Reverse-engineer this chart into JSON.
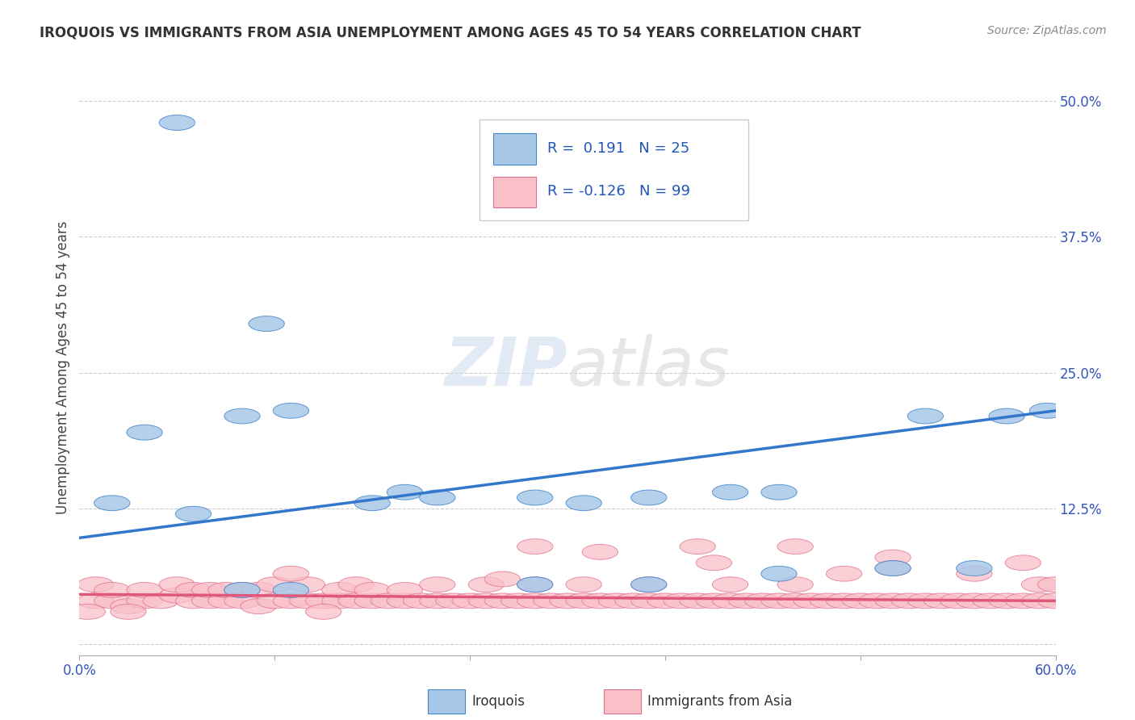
{
  "title": "IROQUOIS VS IMMIGRANTS FROM ASIA UNEMPLOYMENT AMONG AGES 45 TO 54 YEARS CORRELATION CHART",
  "source": "Source: ZipAtlas.com",
  "ylabel": "Unemployment Among Ages 45 to 54 years",
  "xlim": [
    0.0,
    0.6
  ],
  "ylim": [
    -0.02,
    0.52
  ],
  "ylim_data": [
    0.0,
    0.5
  ],
  "yticks": [
    0.0,
    0.125,
    0.25,
    0.375,
    0.5
  ],
  "watermark": "ZIPatlas",
  "legend_iroquois_R": "0.191",
  "legend_iroquois_N": "25",
  "legend_immigrants_R": "-0.126",
  "legend_immigrants_N": "99",
  "blue_fill": "#a8c8e8",
  "blue_edge": "#4488cc",
  "blue_line": "#3377cc",
  "pink_fill": "#f9c0c8",
  "pink_edge": "#e07090",
  "pink_line": "#e05878",
  "iroquois_x": [
    0.06,
    0.04,
    0.115,
    0.1,
    0.13,
    0.18,
    0.2,
    0.22,
    0.28,
    0.31,
    0.35,
    0.4,
    0.43,
    0.52,
    0.57,
    0.595,
    0.02,
    0.07,
    0.1,
    0.13,
    0.28,
    0.35,
    0.43,
    0.5,
    0.55
  ],
  "iroquois_y": [
    0.48,
    0.195,
    0.295,
    0.21,
    0.215,
    0.13,
    0.14,
    0.135,
    0.135,
    0.13,
    0.135,
    0.14,
    0.14,
    0.21,
    0.21,
    0.215,
    0.13,
    0.12,
    0.05,
    0.05,
    0.055,
    0.055,
    0.065,
    0.07,
    0.07
  ],
  "immigrants_x": [
    0.01,
    0.01,
    0.02,
    0.02,
    0.03,
    0.04,
    0.04,
    0.05,
    0.06,
    0.06,
    0.07,
    0.07,
    0.08,
    0.08,
    0.09,
    0.09,
    0.1,
    0.1,
    0.11,
    0.11,
    0.12,
    0.12,
    0.13,
    0.14,
    0.14,
    0.15,
    0.16,
    0.16,
    0.17,
    0.17,
    0.18,
    0.18,
    0.19,
    0.2,
    0.2,
    0.21,
    0.22,
    0.22,
    0.23,
    0.24,
    0.25,
    0.25,
    0.26,
    0.27,
    0.28,
    0.28,
    0.29,
    0.3,
    0.31,
    0.31,
    0.32,
    0.33,
    0.34,
    0.35,
    0.35,
    0.36,
    0.37,
    0.38,
    0.39,
    0.4,
    0.4,
    0.41,
    0.42,
    0.43,
    0.44,
    0.44,
    0.45,
    0.46,
    0.47,
    0.48,
    0.49,
    0.5,
    0.51,
    0.52,
    0.53,
    0.54,
    0.55,
    0.56,
    0.57,
    0.58,
    0.59,
    0.59,
    0.6,
    0.6,
    0.28,
    0.32,
    0.38,
    0.44,
    0.5,
    0.58,
    0.13,
    0.26,
    0.39,
    0.47,
    0.03,
    0.15,
    0.5,
    0.55,
    0.005
  ],
  "immigrants_y": [
    0.04,
    0.055,
    0.04,
    0.05,
    0.035,
    0.04,
    0.05,
    0.04,
    0.045,
    0.055,
    0.04,
    0.05,
    0.04,
    0.05,
    0.04,
    0.05,
    0.04,
    0.05,
    0.035,
    0.05,
    0.04,
    0.055,
    0.04,
    0.04,
    0.055,
    0.04,
    0.04,
    0.05,
    0.04,
    0.055,
    0.04,
    0.05,
    0.04,
    0.04,
    0.05,
    0.04,
    0.04,
    0.055,
    0.04,
    0.04,
    0.04,
    0.055,
    0.04,
    0.04,
    0.04,
    0.055,
    0.04,
    0.04,
    0.04,
    0.055,
    0.04,
    0.04,
    0.04,
    0.04,
    0.055,
    0.04,
    0.04,
    0.04,
    0.04,
    0.04,
    0.055,
    0.04,
    0.04,
    0.04,
    0.04,
    0.055,
    0.04,
    0.04,
    0.04,
    0.04,
    0.04,
    0.04,
    0.04,
    0.04,
    0.04,
    0.04,
    0.04,
    0.04,
    0.04,
    0.04,
    0.04,
    0.055,
    0.04,
    0.055,
    0.09,
    0.085,
    0.09,
    0.09,
    0.08,
    0.075,
    0.065,
    0.06,
    0.075,
    0.065,
    0.03,
    0.03,
    0.07,
    0.065,
    0.03
  ],
  "blue_trendline_x": [
    0.0,
    0.6
  ],
  "blue_trendline_y": [
    0.098,
    0.215
  ],
  "pink_trendline_x": [
    0.0,
    0.6
  ],
  "pink_trendline_y": [
    0.046,
    0.04
  ]
}
